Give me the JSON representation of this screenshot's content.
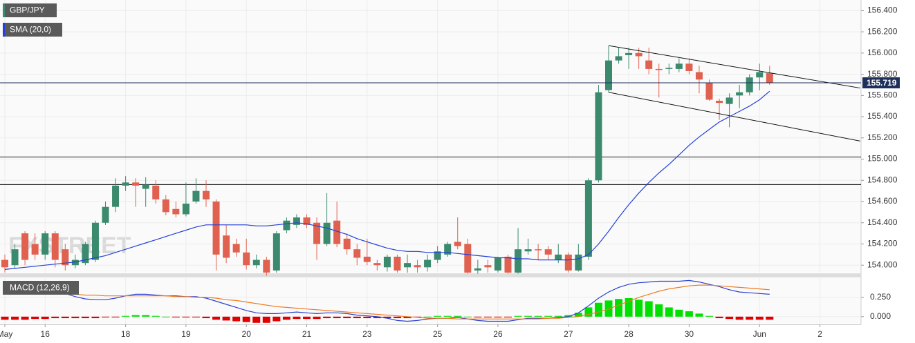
{
  "chart_data": {
    "type": "candlestick",
    "title": "GBP/JPY",
    "watermark": "FXSTREET",
    "categories": [
      "May",
      null,
      null,
      null,
      "16",
      null,
      null,
      null,
      null,
      null,
      null,
      null,
      "18",
      null,
      null,
      null,
      null,
      null,
      "19",
      null,
      null,
      null,
      null,
      null,
      "20",
      null,
      null,
      null,
      null,
      null,
      "21",
      null,
      null,
      null,
      null,
      null,
      "23",
      null,
      null,
      null,
      null,
      null,
      null,
      "25",
      null,
      null,
      null,
      null,
      null,
      "26",
      null,
      null,
      null,
      null,
      null,
      null,
      "27",
      null,
      null,
      null,
      null,
      null,
      "28",
      null,
      null,
      null,
      null,
      null,
      "30",
      null,
      null,
      null,
      null,
      null,
      null,
      "Jun",
      null,
      null,
      null,
      null,
      null,
      "2",
      null,
      null,
      null
    ],
    "open": [
      154.05,
      154.0,
      154.3,
      154.2,
      154.1,
      154.3,
      154.15,
      154.0,
      154.02,
      154.05,
      154.4,
      154.55,
      154.75,
      154.78,
      154.72,
      154.75,
      154.62,
      154.53,
      154.48,
      154.6,
      154.7,
      154.6,
      154.28,
      154.2,
      154.12,
      154.0,
      154.05,
      153.95,
      154.33,
      154.38,
      154.45,
      154.4,
      154.2,
      154.42,
      154.25,
      154.15,
      154.08,
      154.02,
      153.98,
      154.08,
      153.98,
      154.0,
      153.98,
      154.05,
      154.1,
      154.22,
      154.2,
      153.95,
      154.0,
      153.95,
      154.08,
      153.93,
      154.13,
      154.15,
      154.15,
      154.05,
      154.1,
      153.95,
      154.08,
      154.8,
      155.65,
      155.93,
      155.98,
      156.0,
      155.93,
      155.85,
      155.85,
      155.85,
      155.9,
      155.82,
      155.72,
      155.55,
      155.52,
      155.6,
      155.63,
      155.77,
      155.81,
      null,
      null,
      null,
      null,
      null,
      null,
      null,
      null
    ],
    "high": [
      154.1,
      154.2,
      154.32,
      154.3,
      154.32,
      154.32,
      154.2,
      154.1,
      154.22,
      154.42,
      154.6,
      154.82,
      154.84,
      154.82,
      154.83,
      154.8,
      154.66,
      154.6,
      154.78,
      154.82,
      154.8,
      154.62,
      154.38,
      154.25,
      154.25,
      154.1,
      154.08,
      154.32,
      154.45,
      154.48,
      154.48,
      154.45,
      154.68,
      154.6,
      154.3,
      154.2,
      154.25,
      154.05,
      154.1,
      154.1,
      154.1,
      154.05,
      154.1,
      154.18,
      154.22,
      154.45,
      154.25,
      154.05,
      154.05,
      154.08,
      154.1,
      154.35,
      154.25,
      154.2,
      154.18,
      154.2,
      154.12,
      154.2,
      154.82,
      155.7,
      156.07,
      156.05,
      156.05,
      156.05,
      156.05,
      155.9,
      155.9,
      155.95,
      155.95,
      155.88,
      155.75,
      155.57,
      155.62,
      155.7,
      155.8,
      155.9,
      155.88,
      null,
      null,
      null,
      null,
      null,
      null,
      null,
      null
    ],
    "low": [
      153.93,
      153.97,
      154.0,
      154.05,
      154.05,
      153.98,
      153.95,
      153.97,
      154.0,
      154.03,
      154.38,
      154.5,
      154.7,
      154.55,
      154.55,
      154.58,
      154.47,
      154.45,
      154.46,
      154.58,
      154.55,
      153.95,
      154.02,
      154.08,
      153.96,
      153.97,
      153.9,
      153.93,
      154.3,
      154.35,
      154.35,
      154.05,
      154.18,
      154.17,
      154.1,
      154.0,
      154.0,
      153.95,
      153.94,
      153.93,
      153.93,
      153.93,
      153.94,
      154.02,
      154.08,
      154.15,
      153.92,
      153.92,
      153.93,
      153.93,
      153.92,
      153.92,
      154.1,
      154.05,
      154.05,
      154.02,
      153.93,
      153.94,
      154.05,
      154.78,
      155.63,
      155.9,
      155.85,
      155.85,
      155.8,
      155.58,
      155.8,
      155.82,
      155.8,
      155.62,
      155.55,
      155.37,
      155.3,
      155.48,
      155.6,
      155.65,
      155.7,
      null,
      null,
      null,
      null,
      null,
      null,
      null,
      null
    ],
    "close": [
      153.98,
      154.15,
      154.05,
      154.1,
      154.3,
      154.05,
      154.0,
      154.05,
      154.2,
      154.4,
      154.55,
      154.75,
      154.78,
      154.75,
      154.76,
      154.62,
      154.5,
      154.48,
      154.58,
      154.7,
      154.62,
      154.1,
      154.07,
      154.12,
      154.0,
      154.05,
      153.93,
      154.3,
      154.42,
      154.45,
      154.38,
      154.2,
      154.4,
      154.2,
      154.15,
      154.07,
      154.03,
      154.0,
      154.08,
      153.95,
      154.02,
      153.98,
      154.05,
      154.13,
      154.2,
      154.18,
      153.93,
      153.97,
      153.98,
      154.07,
      153.93,
      154.15,
      154.15,
      154.14,
      154.1,
      154.1,
      153.95,
      154.1,
      154.8,
      155.63,
      155.93,
      155.97,
      156.0,
      155.97,
      155.85,
      155.84,
      155.86,
      155.9,
      155.83,
      155.75,
      155.56,
      155.53,
      155.58,
      155.63,
      155.77,
      155.82,
      155.72,
      null,
      null,
      null,
      null,
      null,
      null,
      null,
      null
    ],
    "up_color": "#3b8a6e",
    "down_color": "#e0614f",
    "ylim": [
      153.93,
      156.5
    ],
    "yticks": [
      {
        "value": 156.4,
        "label": "156.400"
      },
      {
        "value": 156.2,
        "label": "156.200"
      },
      {
        "value": 156.0,
        "label": "156.000"
      },
      {
        "value": 155.8,
        "label": "155.800"
      },
      {
        "value": 155.6,
        "label": "155.600"
      },
      {
        "value": 155.4,
        "label": "155.400"
      },
      {
        "value": 155.2,
        "label": "155.200"
      },
      {
        "value": 155.0,
        "label": "155.000"
      },
      {
        "value": 154.8,
        "label": "154.800"
      },
      {
        "value": 154.6,
        "label": "154.600"
      },
      {
        "value": 154.4,
        "label": "154.400"
      },
      {
        "value": 154.2,
        "label": "154.200"
      },
      {
        "value": 154.0,
        "label": "154.000"
      }
    ],
    "grid": true,
    "current_price": 155.719,
    "current_price_color": "#1d2f5a",
    "horizontal_lines": [
      155.02,
      154.76
    ],
    "trendlines": [
      {
        "x": [
          60,
          85
        ],
        "y": [
          156.07,
          155.67
        ]
      },
      {
        "x": [
          60,
          85
        ],
        "y": [
          155.63,
          155.17
        ]
      }
    ],
    "overlays": [
      {
        "name": "SMA (20,0)",
        "color": "#2340d8",
        "values": [
          153.96,
          153.97,
          153.98,
          153.99,
          154.0,
          154.01,
          154.02,
          154.03,
          154.05,
          154.07,
          154.09,
          154.12,
          154.15,
          154.18,
          154.21,
          154.24,
          154.27,
          154.3,
          154.33,
          154.36,
          154.38,
          154.38,
          154.38,
          154.38,
          154.38,
          154.37,
          154.37,
          154.38,
          154.39,
          154.4,
          154.39,
          154.37,
          154.35,
          154.32,
          154.29,
          154.25,
          154.22,
          154.19,
          154.16,
          154.14,
          154.13,
          154.13,
          154.12,
          154.12,
          154.12,
          154.11,
          154.1,
          154.09,
          154.08,
          154.07,
          154.07,
          154.06,
          154.06,
          154.05,
          154.05,
          154.05,
          154.05,
          154.06,
          154.1,
          154.2,
          154.32,
          154.45,
          154.57,
          154.68,
          154.78,
          154.87,
          154.95,
          155.04,
          155.13,
          155.21,
          155.28,
          155.35,
          155.4,
          155.45,
          155.5,
          155.56,
          155.64,
          null,
          null,
          null,
          null,
          null,
          null,
          null,
          null
        ]
      }
    ],
    "indicator": {
      "name": "MACD (12,26,9)",
      "ylim": [
        -0.1,
        0.5
      ],
      "yticks": [
        {
          "value": 0.25,
          "label": "0.250"
        },
        {
          "value": 0,
          "label": "0.000"
        }
      ],
      "series": [
        {
          "color": "#2a3fcf",
          "values": [
            0.38,
            0.37,
            0.36,
            0.35,
            0.34,
            0.33,
            0.3,
            0.26,
            0.23,
            0.22,
            0.22,
            0.24,
            0.27,
            0.29,
            0.29,
            0.28,
            0.27,
            0.27,
            0.26,
            0.26,
            0.24,
            0.2,
            0.16,
            0.12,
            0.08,
            0.05,
            0.04,
            0.04,
            0.05,
            0.06,
            0.05,
            0.04,
            0.05,
            0.05,
            0.04,
            0.02,
            0.01,
            0.0,
            -0.02,
            -0.05,
            -0.06,
            -0.05,
            -0.03,
            -0.02,
            -0.02,
            -0.01,
            -0.03,
            -0.05,
            -0.06,
            -0.06,
            -0.06,
            -0.04,
            -0.02,
            -0.02,
            -0.02,
            -0.01,
            0.0,
            0.05,
            0.14,
            0.24,
            0.32,
            0.38,
            0.42,
            0.44,
            0.45,
            0.46,
            0.46,
            0.46,
            0.47,
            0.45,
            0.42,
            0.39,
            0.35,
            0.32,
            0.31,
            0.3,
            0.29,
            null,
            null,
            null,
            null,
            null,
            null,
            null,
            null
          ]
        },
        {
          "color": "#f07a20",
          "values": [
            0.33,
            0.33,
            0.32,
            0.32,
            0.31,
            0.31,
            0.3,
            0.29,
            0.28,
            0.28,
            0.27,
            0.27,
            0.27,
            0.27,
            0.27,
            0.27,
            0.27,
            0.26,
            0.26,
            0.25,
            0.25,
            0.24,
            0.22,
            0.21,
            0.19,
            0.17,
            0.15,
            0.13,
            0.12,
            0.11,
            0.1,
            0.09,
            0.08,
            0.07,
            0.06,
            0.05,
            0.04,
            0.03,
            0.02,
            0.01,
            0.0,
            -0.01,
            -0.02,
            -0.02,
            -0.02,
            -0.03,
            -0.03,
            -0.03,
            -0.03,
            -0.03,
            -0.03,
            -0.03,
            -0.03,
            -0.03,
            -0.02,
            -0.02,
            -0.01,
            0.0,
            0.03,
            0.06,
            0.1,
            0.15,
            0.2,
            0.25,
            0.29,
            0.33,
            0.36,
            0.38,
            0.4,
            0.41,
            0.41,
            0.4,
            0.39,
            0.38,
            0.37,
            0.36,
            0.35,
            null,
            null,
            null,
            null,
            null,
            null,
            null,
            null
          ]
        }
      ],
      "histogram": {
        "up_color": "#00e000",
        "down_color": "#e00000",
        "values": [
          -0.04,
          -0.04,
          -0.04,
          -0.03,
          -0.03,
          -0.02,
          -0.02,
          -0.02,
          -0.02,
          -0.02,
          -0.01,
          -0.01,
          0.01,
          0.02,
          0.02,
          0.01,
          0.0,
          -0.01,
          -0.01,
          -0.01,
          -0.02,
          -0.04,
          -0.05,
          -0.06,
          -0.07,
          -0.08,
          -0.08,
          -0.06,
          -0.04,
          -0.03,
          -0.03,
          -0.03,
          -0.02,
          -0.02,
          -0.02,
          -0.02,
          -0.02,
          -0.02,
          -0.02,
          -0.02,
          -0.02,
          -0.01,
          0.0,
          0.01,
          0.01,
          0.01,
          0.0,
          -0.01,
          -0.01,
          -0.01,
          -0.01,
          0.01,
          0.01,
          0.01,
          0.01,
          0.01,
          0.02,
          0.05,
          0.12,
          0.18,
          0.21,
          0.23,
          0.24,
          0.22,
          0.2,
          0.16,
          0.12,
          0.09,
          0.07,
          0.04,
          0.01,
          -0.02,
          -0.03,
          -0.04,
          -0.04,
          -0.04,
          -0.04,
          null,
          null,
          null,
          null,
          null,
          null,
          null,
          null
        ]
      }
    }
  }
}
